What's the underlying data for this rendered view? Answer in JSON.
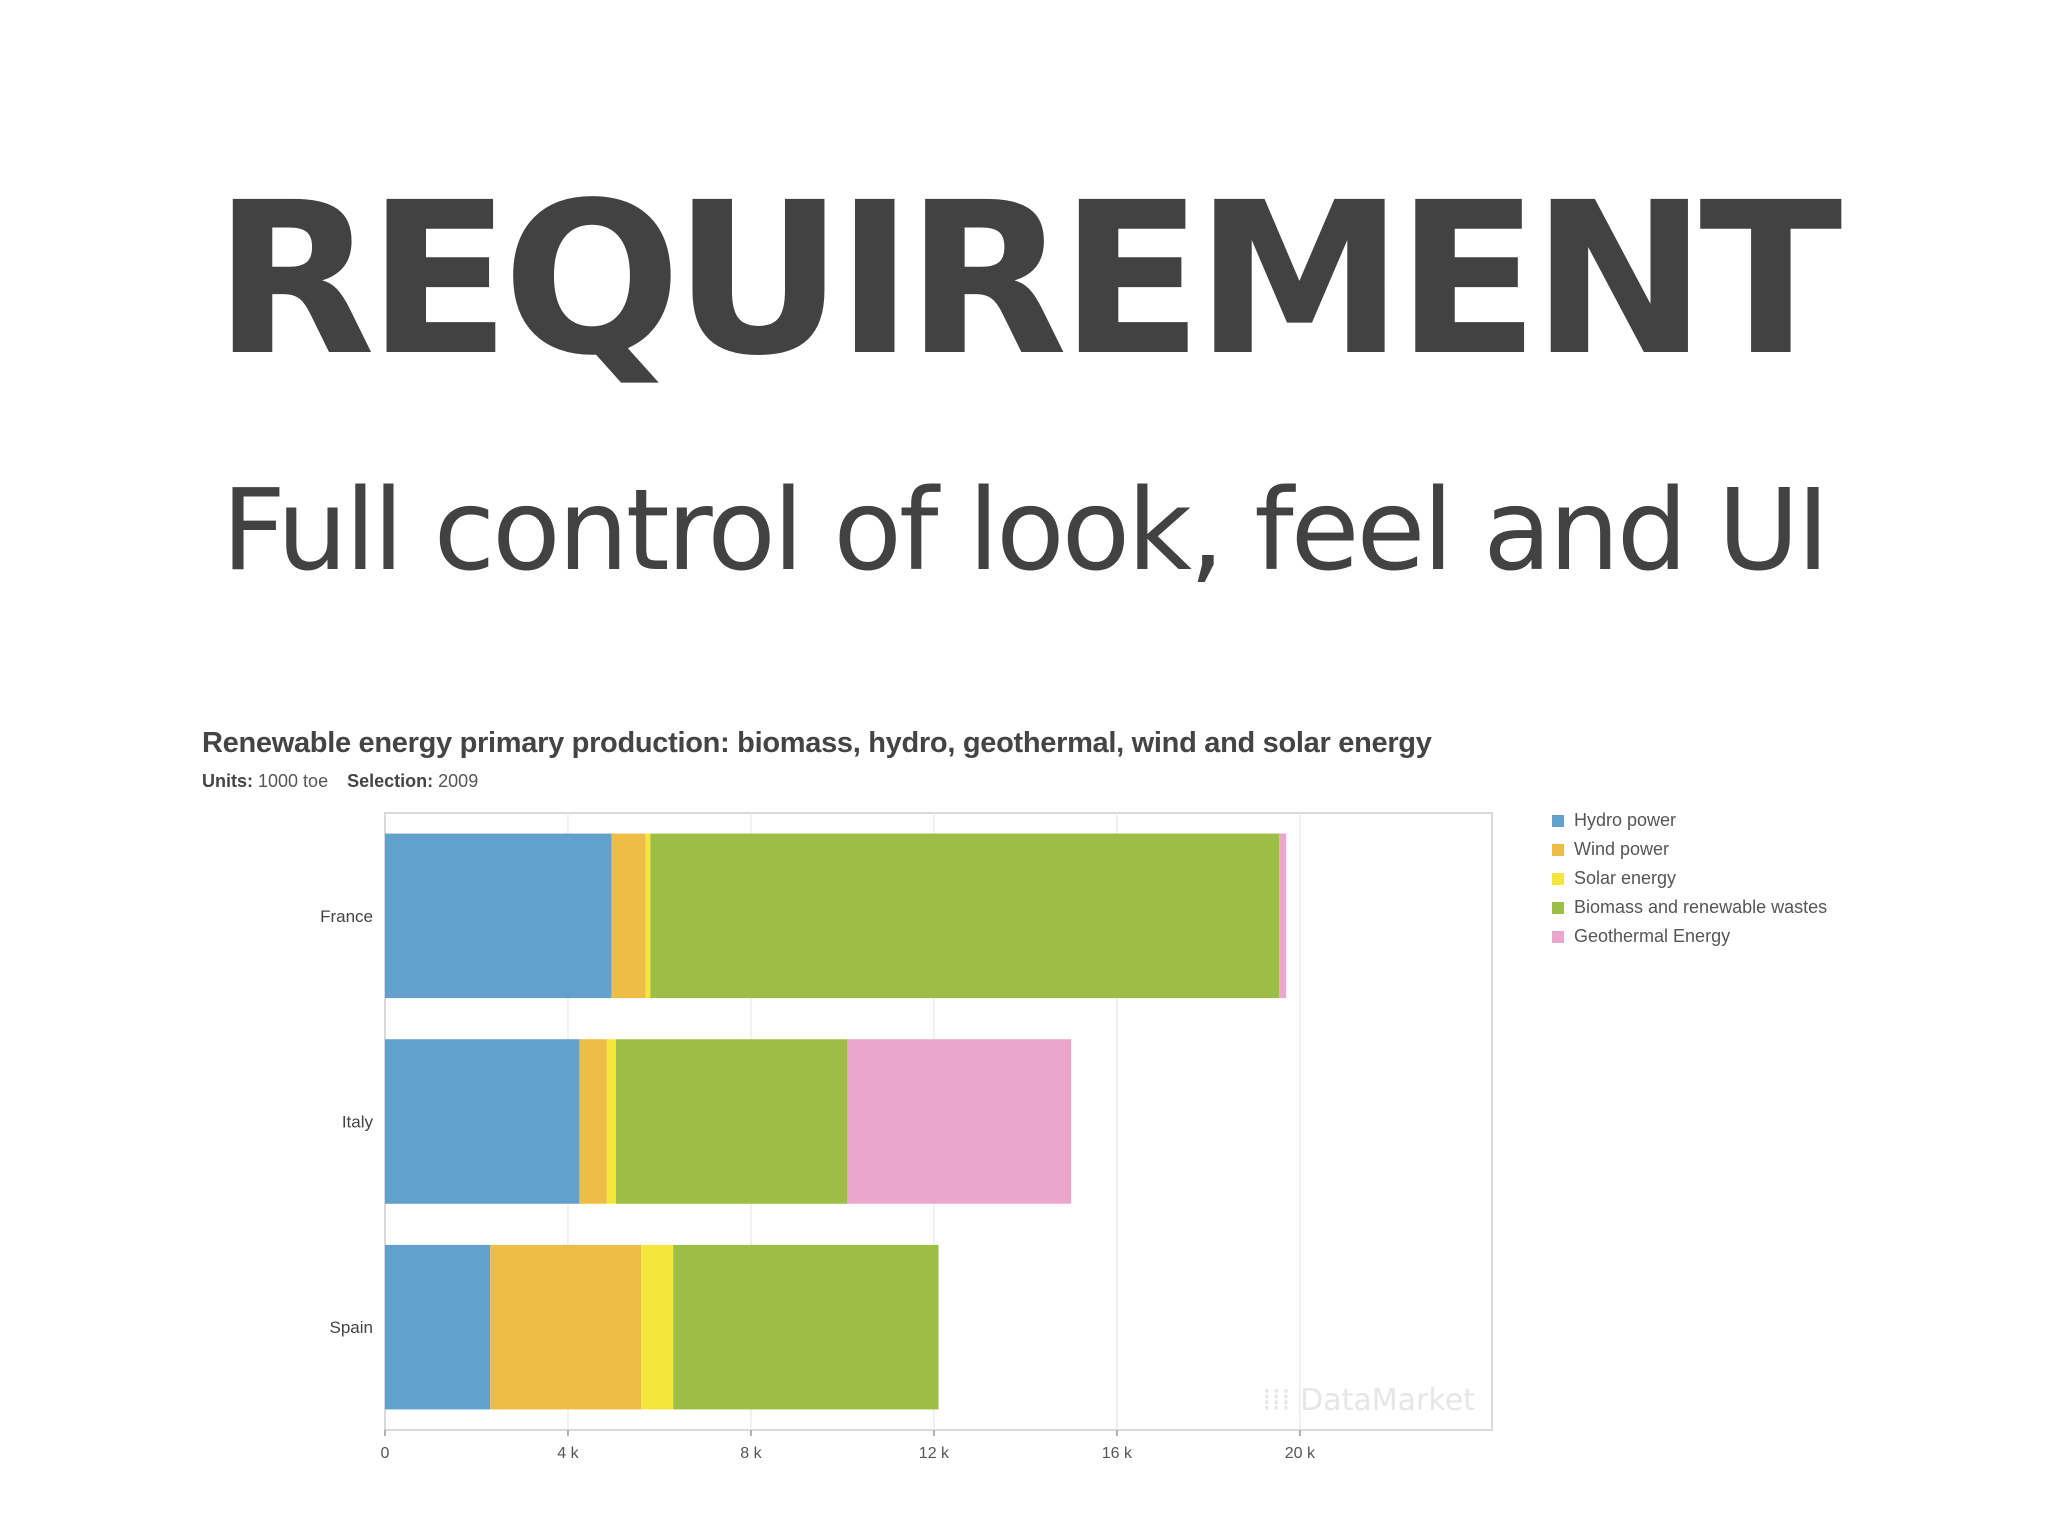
{
  "heading": "REQUIREMENT",
  "subheading": "Full control of look, feel and UI",
  "watermark": "DataMarket",
  "colors": {
    "hydro": "#62a0cd",
    "wind": "#eebd45",
    "solar": "#f5e63c",
    "biomass": "#9cbe47",
    "geothermal": "#eba6cd",
    "heading": "#424242"
  },
  "chart_data": {
    "type": "bar",
    "orientation": "horizontal",
    "stacked": true,
    "title": "Renewable energy primary production: biomass, hydro, geothermal, wind and solar energy",
    "units_label": "Units:",
    "units_value": "1000 toe",
    "selection_label": "Selection:",
    "selection_value": "2009",
    "categories": [
      "France",
      "Italy",
      "Spain"
    ],
    "series": [
      {
        "name": "Hydro power",
        "color": "#62a0cd",
        "values": [
          4950,
          4250,
          2300
        ]
      },
      {
        "name": "Wind power",
        "color": "#eebd45",
        "values": [
          750,
          600,
          3300
        ]
      },
      {
        "name": "Solar energy",
        "color": "#f5e63c",
        "values": [
          100,
          200,
          700
        ]
      },
      {
        "name": "Biomass and renewable wastes",
        "color": "#9cbe47",
        "values": [
          13750,
          5050,
          5800
        ]
      },
      {
        "name": "Geothermal Energy",
        "color": "#eba6cd",
        "values": [
          150,
          4900,
          0
        ]
      }
    ],
    "x_ticks": [
      {
        "value": 0,
        "label": "0"
      },
      {
        "value": 4000,
        "label": "4 k"
      },
      {
        "value": 8000,
        "label": "8 k"
      },
      {
        "value": 12000,
        "label": "12 k"
      },
      {
        "value": 16000,
        "label": "16 k"
      },
      {
        "value": 20000,
        "label": "20 k"
      }
    ],
    "xlim": [
      0,
      24200
    ],
    "grid": true,
    "legend_position": "right"
  }
}
